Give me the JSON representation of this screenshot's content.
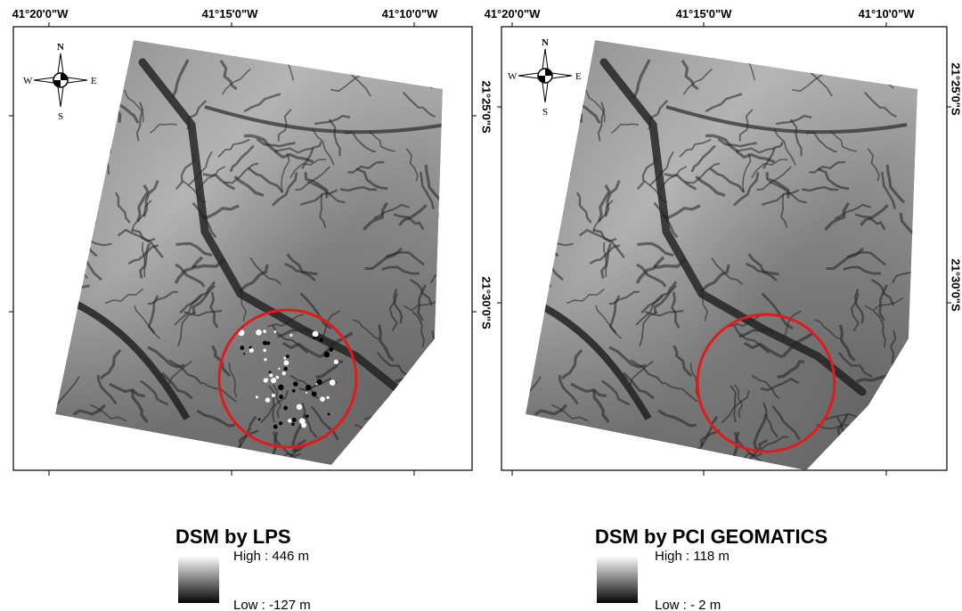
{
  "panels": [
    {
      "top_labels": [
        "41°20'0\"W",
        "41°15'0\"W",
        "41°10'0\"W"
      ],
      "side_labels": [
        "21°25'0\"S",
        "21°30'0\"S"
      ],
      "compass": {
        "n": "N",
        "s": "S",
        "e": "E",
        "w": "W"
      },
      "legend": {
        "title": "DSM by LPS",
        "high": "High : 446 m",
        "low": "Low : -127 m"
      }
    },
    {
      "top_labels": [
        "41°20'0\"W",
        "41°15'0\"W",
        "41°10'0\"W"
      ],
      "side_labels": [
        "21°25'0\"S",
        "21°30'0\"S"
      ],
      "compass": {
        "n": "N",
        "s": "S",
        "e": "E",
        "w": "W"
      },
      "legend": {
        "title": "DSM by PCI GEOMATICS",
        "high": "High : 118 m",
        "low": "Low : - 2 m"
      }
    }
  ]
}
